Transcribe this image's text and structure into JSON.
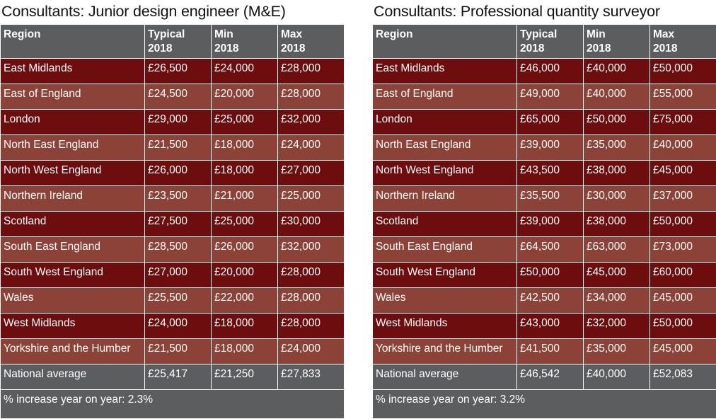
{
  "tables": [
    {
      "title": "Consultants: Junior design engineer (M&E)",
      "headers": [
        {
          "line1": "Region",
          "line2": ""
        },
        {
          "line1": "Typical",
          "line2": "2018"
        },
        {
          "line1": "Min",
          "line2": "2018"
        },
        {
          "line1": "Max",
          "line2": "2018"
        }
      ],
      "rows": [
        [
          "East Midlands",
          "£26,500",
          "£24,000",
          "£28,000"
        ],
        [
          "East of England",
          "£24,500",
          "£20,000",
          "£28,000"
        ],
        [
          "London",
          "£29,000",
          "£25,000",
          "£32,000"
        ],
        [
          "North East England",
          "£21,500",
          "£18,000",
          "£24,000"
        ],
        [
          "North West England",
          "£26,000",
          "£18,000",
          "£27,000"
        ],
        [
          "Northern Ireland",
          "£23,500",
          "£21,000",
          "£25,000"
        ],
        [
          "Scotland",
          "£27,500",
          "£25,000",
          "£30,000"
        ],
        [
          "South East England",
          "£28,500",
          "£26,000",
          "£32,000"
        ],
        [
          "South West England",
          "£27,000",
          "£20,000",
          "£28,000"
        ],
        [
          "Wales",
          "£25,500",
          "£22,000",
          "£28,000"
        ],
        [
          "West Midlands",
          "£24,000",
          "£18,000",
          "£28,000"
        ],
        [
          "Yorkshire and the Humber",
          "£21,500",
          "£18,000",
          "£24,000"
        ]
      ],
      "average": [
        "National average",
        "£25,417",
        "£21,250",
        "£27,833"
      ],
      "footnote": "% increase year on year:  2.3%"
    },
    {
      "title": "Consultants: Professional quantity surveyor",
      "headers": [
        {
          "line1": "Region",
          "line2": ""
        },
        {
          "line1": "Typical",
          "line2": "2018"
        },
        {
          "line1": "Min",
          "line2": "2018"
        },
        {
          "line1": "Max",
          "line2": "2018"
        }
      ],
      "rows": [
        [
          "East Midlands",
          "£46,000",
          "£40,000",
          "£50,000"
        ],
        [
          "East of England",
          "£49,000",
          "£40,000",
          "£55,000"
        ],
        [
          "London",
          "£65,000",
          "£50,000",
          "£75,000"
        ],
        [
          "North East England",
          "£39,000",
          "£35,000",
          "£40,000"
        ],
        [
          "North West England",
          "£43,500",
          "£38,000",
          "£45,000"
        ],
        [
          "Northern Ireland",
          "£35,500",
          "£30,000",
          "£37,000"
        ],
        [
          "Scotland",
          "£39,000",
          "£38,000",
          "£50,000"
        ],
        [
          "South East England",
          "£64,500",
          "£63,000",
          "£73,000"
        ],
        [
          "South West England",
          "£50,000",
          "£45,000",
          "£60,000"
        ],
        [
          "Wales",
          "£42,500",
          "£34,000",
          "£45,000"
        ],
        [
          "West Midlands",
          "£43,000",
          "£32,000",
          "£50,000"
        ],
        [
          "Yorkshire and the Humber",
          "£41,500",
          "£35,000",
          "£45,000"
        ]
      ],
      "average": [
        "National average",
        "£46,542",
        "£40,000",
        "£52,083"
      ],
      "footnote": "% increase year on year:  3.2%"
    }
  ],
  "colors": {
    "header": "#5c5d5f",
    "row_dark": "#6e0d0d",
    "row_light": "#8c4237",
    "text": "#ffffff"
  }
}
